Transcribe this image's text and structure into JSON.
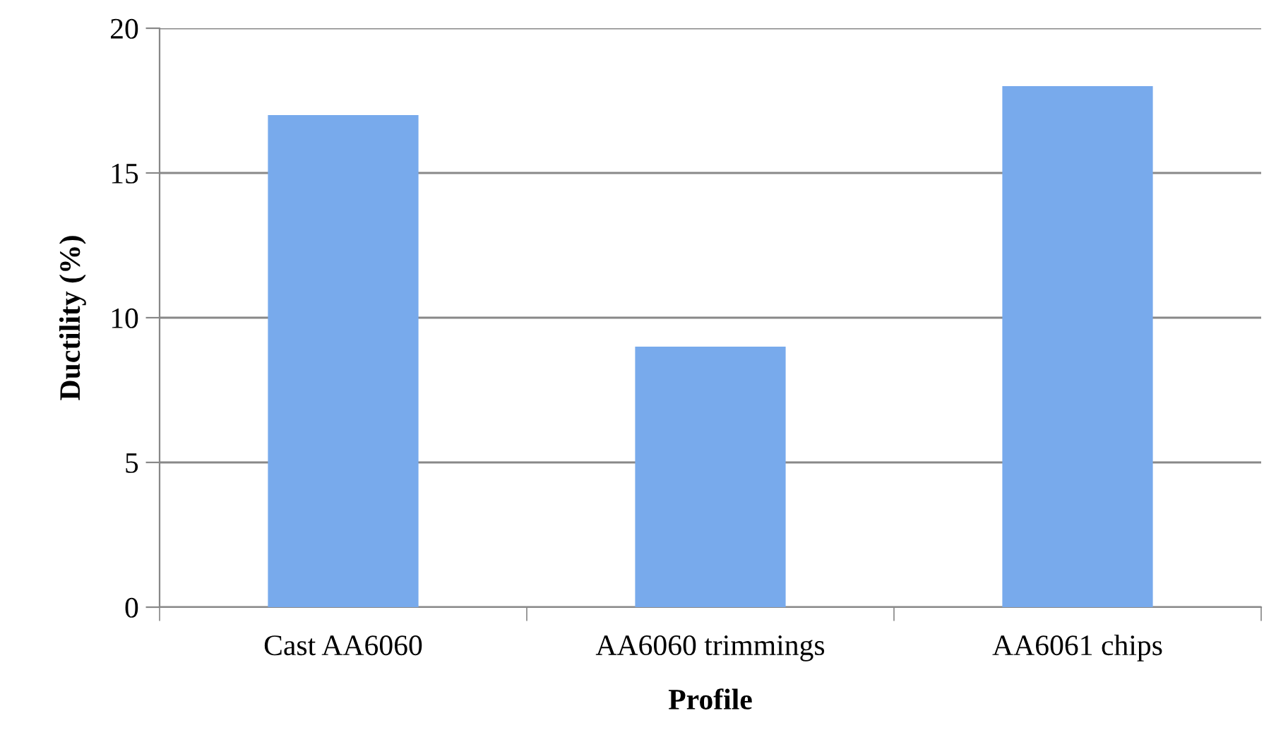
{
  "chart_data": {
    "type": "bar",
    "xlabel": "Profile",
    "ylabel": "Ductility (%)",
    "categories": [
      "Cast AA6060",
      "AA6060 trimmings",
      "AA6061 chips"
    ],
    "values": [
      17,
      9,
      18
    ],
    "color": "#78aaec",
    "ylim": [
      0,
      20
    ],
    "yticks": [
      0,
      5,
      10,
      15,
      20
    ],
    "grid": "y",
    "legend": false
  }
}
